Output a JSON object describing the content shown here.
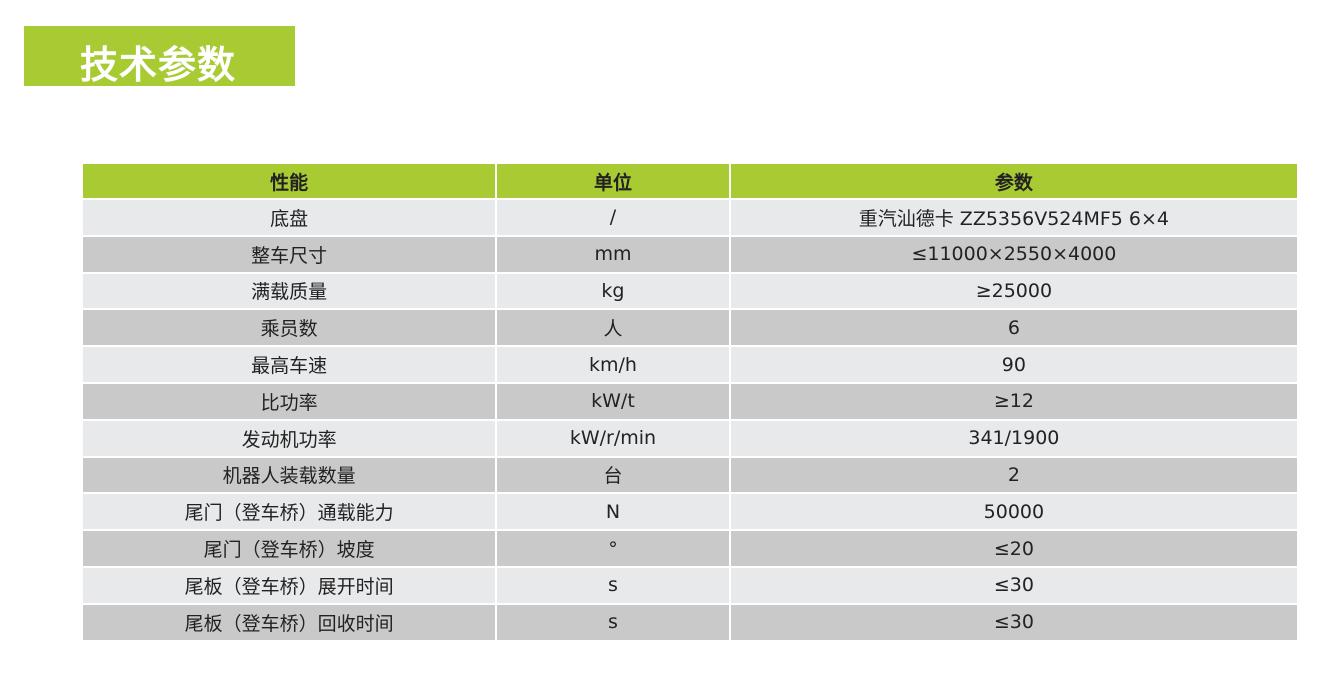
{
  "title": "技术参数",
  "table": {
    "headers": [
      "性能",
      "单位",
      "参数"
    ],
    "rows": [
      [
        "底盘",
        "/",
        "重汽汕德卡 ZZ5356V524MF5 6×4"
      ],
      [
        "整车尺寸",
        "mm",
        "≤11000×2550×4000"
      ],
      [
        "满载质量",
        "kg",
        "≥25000"
      ],
      [
        "乘员数",
        "人",
        "6"
      ],
      [
        "最高车速",
        "km/h",
        "90"
      ],
      [
        "比功率",
        "kW/t",
        "≥12"
      ],
      [
        "发动机功率",
        "kW/r/min",
        "341/1900"
      ],
      [
        "机器人装载数量",
        "台",
        "2"
      ],
      [
        "尾门（登车桥）通载能力",
        "N",
        "50000"
      ],
      [
        "尾门（登车桥）坡度",
        "°",
        "≤20"
      ],
      [
        "尾板（登车桥）展开时间",
        "s",
        "≤30"
      ],
      [
        "尾板（登车桥）回收时间",
        "s",
        "≤30"
      ]
    ]
  },
  "colors": {
    "accent": "#a8cb34",
    "row_light": "#e8e9eb",
    "row_dark": "#c9c9c9"
  }
}
